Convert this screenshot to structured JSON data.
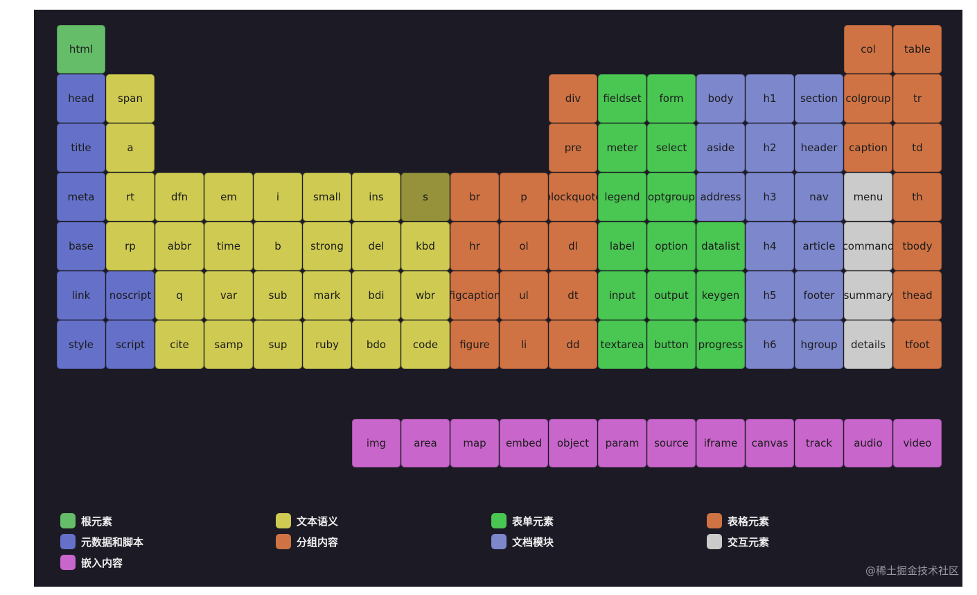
{
  "colors": {
    "root": "#65bd6a",
    "meta": "#6571c9",
    "text": "#cfcb52",
    "group": "#d07344",
    "form": "#4ac653",
    "section": "#7d87cc",
    "table": "#d07344",
    "interactive": "#cbcbcb",
    "embed": "#c966cc"
  },
  "tiles": [
    {
      "label": "html",
      "cat": "root",
      "col": 0,
      "row": 0
    },
    {
      "label": "head",
      "cat": "meta",
      "col": 0,
      "row": 1
    },
    {
      "label": "title",
      "cat": "meta",
      "col": 0,
      "row": 2
    },
    {
      "label": "meta",
      "cat": "meta",
      "col": 0,
      "row": 3
    },
    {
      "label": "base",
      "cat": "meta",
      "col": 0,
      "row": 4
    },
    {
      "label": "link",
      "cat": "meta",
      "col": 0,
      "row": 5
    },
    {
      "label": "style",
      "cat": "meta",
      "col": 0,
      "row": 6
    },
    {
      "label": "span",
      "cat": "text",
      "col": 1,
      "row": 1
    },
    {
      "label": "a",
      "cat": "text",
      "col": 1,
      "row": 2
    },
    {
      "label": "rt",
      "cat": "text",
      "col": 1,
      "row": 3
    },
    {
      "label": "rp",
      "cat": "text",
      "col": 1,
      "row": 4
    },
    {
      "label": "noscript",
      "cat": "meta",
      "col": 1,
      "row": 5
    },
    {
      "label": "script",
      "cat": "meta",
      "col": 1,
      "row": 6
    },
    {
      "label": "dfn",
      "cat": "text",
      "col": 2,
      "row": 3
    },
    {
      "label": "abbr",
      "cat": "text",
      "col": 2,
      "row": 4
    },
    {
      "label": "q",
      "cat": "text",
      "col": 2,
      "row": 5
    },
    {
      "label": "cite",
      "cat": "text",
      "col": 2,
      "row": 6
    },
    {
      "label": "em",
      "cat": "text",
      "col": 3,
      "row": 3
    },
    {
      "label": "time",
      "cat": "text",
      "col": 3,
      "row": 4
    },
    {
      "label": "var",
      "cat": "text",
      "col": 3,
      "row": 5
    },
    {
      "label": "samp",
      "cat": "text",
      "col": 3,
      "row": 6
    },
    {
      "label": "i",
      "cat": "text",
      "col": 4,
      "row": 3
    },
    {
      "label": "b",
      "cat": "text",
      "col": 4,
      "row": 4
    },
    {
      "label": "sub",
      "cat": "text",
      "col": 4,
      "row": 5
    },
    {
      "label": "sup",
      "cat": "text",
      "col": 4,
      "row": 6
    },
    {
      "label": "small",
      "cat": "text",
      "col": 5,
      "row": 3
    },
    {
      "label": "strong",
      "cat": "text",
      "col": 5,
      "row": 4
    },
    {
      "label": "mark",
      "cat": "text",
      "col": 5,
      "row": 5
    },
    {
      "label": "ruby",
      "cat": "text",
      "col": 5,
      "row": 6
    },
    {
      "label": "ins",
      "cat": "text",
      "col": 6,
      "row": 3
    },
    {
      "label": "del",
      "cat": "text",
      "col": 6,
      "row": 4
    },
    {
      "label": "bdi",
      "cat": "text",
      "col": 6,
      "row": 5
    },
    {
      "label": "bdo",
      "cat": "text",
      "col": 6,
      "row": 6
    },
    {
      "label": "s",
      "cat": "text",
      "col": 7,
      "row": 3,
      "dim": true
    },
    {
      "label": "kbd",
      "cat": "text",
      "col": 7,
      "row": 4
    },
    {
      "label": "wbr",
      "cat": "text",
      "col": 7,
      "row": 5
    },
    {
      "label": "code",
      "cat": "text",
      "col": 7,
      "row": 6
    },
    {
      "label": "br",
      "cat": "group",
      "col": 8,
      "row": 3
    },
    {
      "label": "hr",
      "cat": "group",
      "col": 8,
      "row": 4
    },
    {
      "label": "figcaption",
      "cat": "group",
      "col": 8,
      "row": 5
    },
    {
      "label": "figure",
      "cat": "group",
      "col": 8,
      "row": 6
    },
    {
      "label": "p",
      "cat": "group",
      "col": 9,
      "row": 3
    },
    {
      "label": "ol",
      "cat": "group",
      "col": 9,
      "row": 4
    },
    {
      "label": "ul",
      "cat": "group",
      "col": 9,
      "row": 5
    },
    {
      "label": "li",
      "cat": "group",
      "col": 9,
      "row": 6
    },
    {
      "label": "div",
      "cat": "group",
      "col": 10,
      "row": 1
    },
    {
      "label": "pre",
      "cat": "group",
      "col": 10,
      "row": 2
    },
    {
      "label": "blockquote",
      "cat": "group",
      "col": 10,
      "row": 3
    },
    {
      "label": "dl",
      "cat": "group",
      "col": 10,
      "row": 4
    },
    {
      "label": "dt",
      "cat": "group",
      "col": 10,
      "row": 5
    },
    {
      "label": "dd",
      "cat": "group",
      "col": 10,
      "row": 6
    },
    {
      "label": "fieldset",
      "cat": "form",
      "col": 11,
      "row": 1
    },
    {
      "label": "meter",
      "cat": "form",
      "col": 11,
      "row": 2
    },
    {
      "label": "legend",
      "cat": "form",
      "col": 11,
      "row": 3
    },
    {
      "label": "label",
      "cat": "form",
      "col": 11,
      "row": 4
    },
    {
      "label": "input",
      "cat": "form",
      "col": 11,
      "row": 5
    },
    {
      "label": "textarea",
      "cat": "form",
      "col": 11,
      "row": 6
    },
    {
      "label": "form",
      "cat": "form",
      "col": 12,
      "row": 1
    },
    {
      "label": "select",
      "cat": "form",
      "col": 12,
      "row": 2
    },
    {
      "label": "optgroup",
      "cat": "form",
      "col": 12,
      "row": 3
    },
    {
      "label": "option",
      "cat": "form",
      "col": 12,
      "row": 4
    },
    {
      "label": "output",
      "cat": "form",
      "col": 12,
      "row": 5
    },
    {
      "label": "button",
      "cat": "form",
      "col": 12,
      "row": 6
    },
    {
      "label": "body",
      "cat": "section",
      "col": 13,
      "row": 1
    },
    {
      "label": "aside",
      "cat": "section",
      "col": 13,
      "row": 2
    },
    {
      "label": "address",
      "cat": "section",
      "col": 13,
      "row": 3
    },
    {
      "label": "datalist",
      "cat": "form",
      "col": 13,
      "row": 4
    },
    {
      "label": "keygen",
      "cat": "form",
      "col": 13,
      "row": 5
    },
    {
      "label": "progress",
      "cat": "form",
      "col": 13,
      "row": 6
    },
    {
      "label": "h1",
      "cat": "section",
      "col": 14,
      "row": 1
    },
    {
      "label": "h2",
      "cat": "section",
      "col": 14,
      "row": 2
    },
    {
      "label": "h3",
      "cat": "section",
      "col": 14,
      "row": 3
    },
    {
      "label": "h4",
      "cat": "section",
      "col": 14,
      "row": 4
    },
    {
      "label": "h5",
      "cat": "section",
      "col": 14,
      "row": 5
    },
    {
      "label": "h6",
      "cat": "section",
      "col": 14,
      "row": 6
    },
    {
      "label": "section",
      "cat": "section",
      "col": 15,
      "row": 1
    },
    {
      "label": "header",
      "cat": "section",
      "col": 15,
      "row": 2
    },
    {
      "label": "nav",
      "cat": "section",
      "col": 15,
      "row": 3
    },
    {
      "label": "article",
      "cat": "section",
      "col": 15,
      "row": 4
    },
    {
      "label": "footer",
      "cat": "section",
      "col": 15,
      "row": 5
    },
    {
      "label": "hgroup",
      "cat": "section",
      "col": 15,
      "row": 6
    },
    {
      "label": "col",
      "cat": "table",
      "col": 16,
      "row": 0
    },
    {
      "label": "colgroup",
      "cat": "table",
      "col": 16,
      "row": 1
    },
    {
      "label": "caption",
      "cat": "table",
      "col": 16,
      "row": 2
    },
    {
      "label": "menu",
      "cat": "interactive",
      "col": 16,
      "row": 3
    },
    {
      "label": "command",
      "cat": "interactive",
      "col": 16,
      "row": 4
    },
    {
      "label": "summary",
      "cat": "interactive",
      "col": 16,
      "row": 5
    },
    {
      "label": "details",
      "cat": "interactive",
      "col": 16,
      "row": 6
    },
    {
      "label": "table",
      "cat": "table",
      "col": 17,
      "row": 0
    },
    {
      "label": "tr",
      "cat": "table",
      "col": 17,
      "row": 1
    },
    {
      "label": "td",
      "cat": "table",
      "col": 17,
      "row": 2
    },
    {
      "label": "th",
      "cat": "table",
      "col": 17,
      "row": 3
    },
    {
      "label": "tbody",
      "cat": "table",
      "col": 17,
      "row": 4
    },
    {
      "label": "thead",
      "cat": "table",
      "col": 17,
      "row": 5
    },
    {
      "label": "tfoot",
      "cat": "table",
      "col": 17,
      "row": 6
    },
    {
      "label": "img",
      "cat": "embed",
      "col": 6,
      "row": 8
    },
    {
      "label": "area",
      "cat": "embed",
      "col": 7,
      "row": 8
    },
    {
      "label": "map",
      "cat": "embed",
      "col": 8,
      "row": 8
    },
    {
      "label": "embed",
      "cat": "embed",
      "col": 9,
      "row": 8
    },
    {
      "label": "object",
      "cat": "embed",
      "col": 10,
      "row": 8
    },
    {
      "label": "param",
      "cat": "embed",
      "col": 11,
      "row": 8
    },
    {
      "label": "source",
      "cat": "embed",
      "col": 12,
      "row": 8
    },
    {
      "label": "iframe",
      "cat": "embed",
      "col": 13,
      "row": 8
    },
    {
      "label": "canvas",
      "cat": "embed",
      "col": 14,
      "row": 8
    },
    {
      "label": "track",
      "cat": "embed",
      "col": 15,
      "row": 8
    },
    {
      "label": "audio",
      "cat": "embed",
      "col": 16,
      "row": 8
    },
    {
      "label": "video",
      "cat": "embed",
      "col": 17,
      "row": 8
    }
  ],
  "legend": [
    {
      "label": "根元素",
      "cat": "root",
      "slot": 0,
      "line": 0
    },
    {
      "label": "元数据和脚本",
      "cat": "meta",
      "slot": 0,
      "line": 1
    },
    {
      "label": "嵌入内容",
      "cat": "embed",
      "slot": 0,
      "line": 2
    },
    {
      "label": "文本语义",
      "cat": "text",
      "slot": 1,
      "line": 0
    },
    {
      "label": "分组内容",
      "cat": "group",
      "slot": 1,
      "line": 1
    },
    {
      "label": "表单元素",
      "cat": "form",
      "slot": 2,
      "line": 0
    },
    {
      "label": "文档模块",
      "cat": "section",
      "slot": 2,
      "line": 1
    },
    {
      "label": "表格元素",
      "cat": "table",
      "slot": 3,
      "line": 0
    },
    {
      "label": "交互元素",
      "cat": "interactive",
      "slot": 3,
      "line": 1
    }
  ],
  "watermark": "@稀土掘金技术社区"
}
